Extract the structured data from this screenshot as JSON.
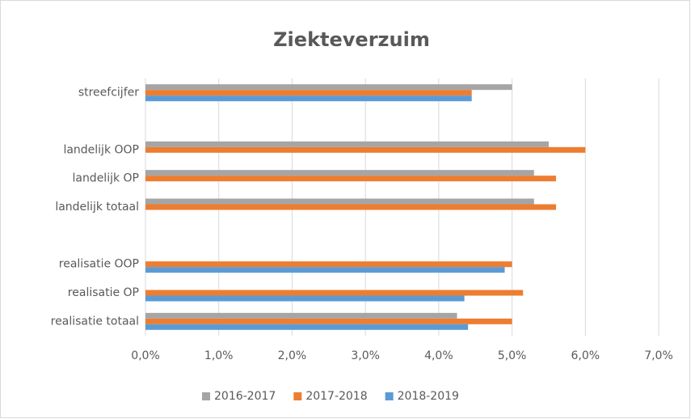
{
  "chart_data": {
    "type": "hbar",
    "title": "Ziekteverzuim",
    "categories": [
      "streefcijfer",
      null,
      "landelijk OOP",
      "landelijk OP",
      "landelijk totaal",
      null,
      "realisatie OOP",
      "realisatie OP",
      "realisatie totaal"
    ],
    "series": [
      {
        "name": "2016-2017",
        "color": "#a5a5a5",
        "values": [
          5.0,
          null,
          5.5,
          5.3,
          5.3,
          null,
          null,
          null,
          4.25
        ]
      },
      {
        "name": "2017-2018",
        "color": "#ed7d31",
        "values": [
          4.45,
          null,
          6.0,
          5.6,
          5.6,
          null,
          5.0,
          5.15,
          5.0
        ]
      },
      {
        "name": "2018-2019",
        "color": "#5b9bd5",
        "values": [
          4.45,
          null,
          null,
          null,
          null,
          null,
          4.9,
          4.35,
          4.4
        ]
      }
    ],
    "xlim": [
      0,
      7
    ],
    "xticks": [
      {
        "value": 0,
        "label": "0,0%"
      },
      {
        "value": 1,
        "label": "1,0%"
      },
      {
        "value": 2,
        "label": "2,0%"
      },
      {
        "value": 3,
        "label": "3,0%"
      },
      {
        "value": 4,
        "label": "4,0%"
      },
      {
        "value": 5,
        "label": "5,0%"
      },
      {
        "value": 6,
        "label": "6,0%"
      },
      {
        "value": 7,
        "label": "7,0%"
      }
    ],
    "grid": true
  }
}
